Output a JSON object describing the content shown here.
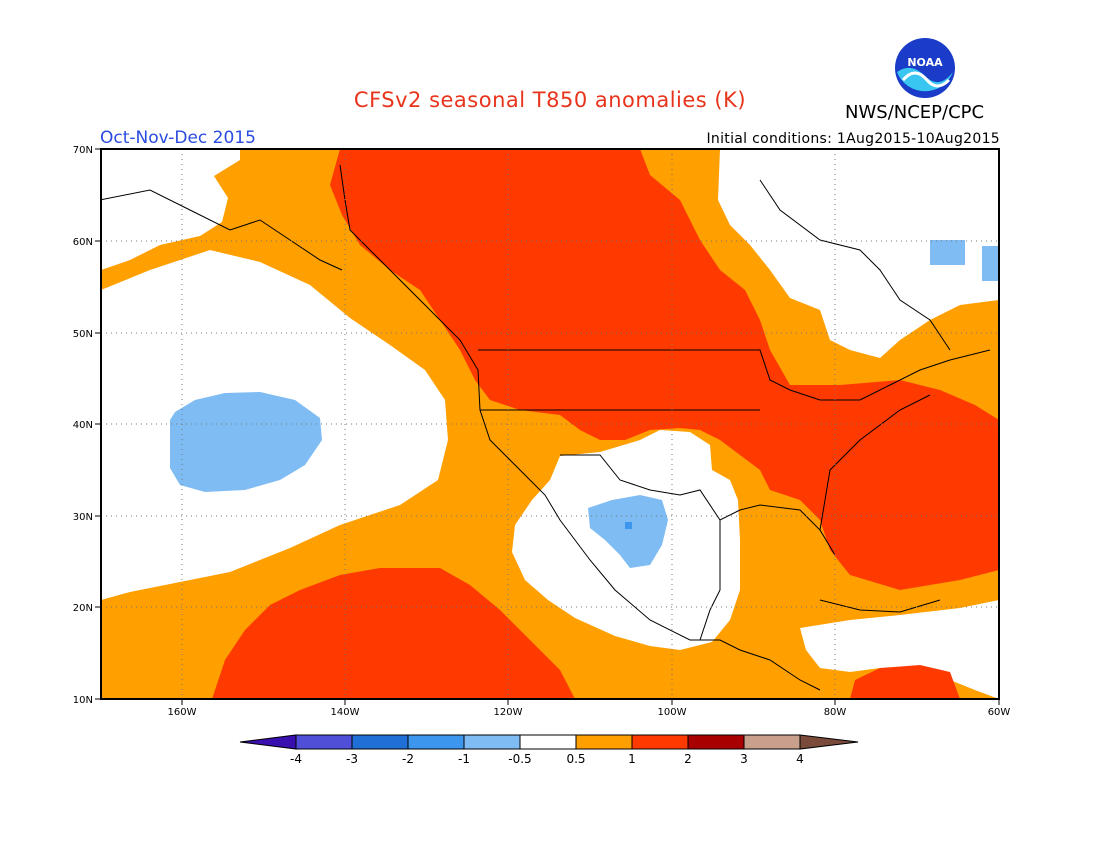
{
  "header": {
    "title": "CFSv2 seasonal T850 anomalies (K)",
    "agency": "NWS/NCEP/CPC",
    "period": "Oct-Nov-Dec 2015",
    "initial_conditions": "Initial conditions: 1Aug2015-10Aug2015",
    "logo_text": "NOAA"
  },
  "map": {
    "lat_labels": [
      "70N",
      "60N",
      "50N",
      "40N",
      "30N",
      "20N",
      "10N"
    ],
    "lon_labels": [
      "160W",
      "140W",
      "120W",
      "100W",
      "80W",
      "60W"
    ],
    "lon_range": [
      "170W",
      "60W"
    ],
    "lat_range": [
      "10N",
      "70N"
    ]
  },
  "colorbar": {
    "labels": [
      "-4",
      "-3",
      "-2",
      "-1",
      "-0.5",
      "0.5",
      "1",
      "2",
      "3",
      "4"
    ],
    "colors": [
      "#3a0fb0",
      "#4f4fd8",
      "#1f6fd6",
      "#3d96ee",
      "#7fbcf3",
      "#ffffff",
      "#ff9f00",
      "#ff3a00",
      "#a80000",
      "#c8a08c",
      "#7a4a3a"
    ],
    "units": "K"
  }
}
